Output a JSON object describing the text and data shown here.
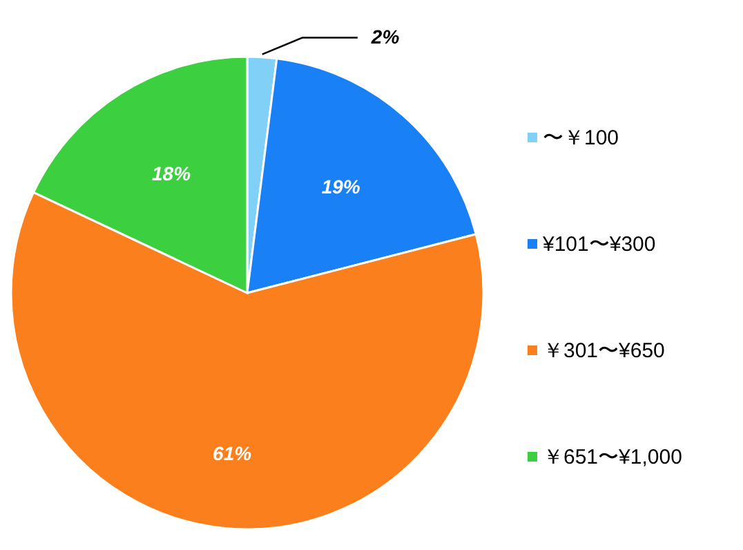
{
  "chart_data": {
    "type": "pie",
    "categories": [
      "〜￥100",
      "¥101〜¥300",
      "￥301〜¥650",
      "￥651〜¥1,000"
    ],
    "values": [
      2,
      19,
      61,
      18
    ],
    "colors": [
      "#80d0f8",
      "#1a80f5",
      "#fb7f1c",
      "#3cd040"
    ],
    "value_labels": [
      "2%",
      "19%",
      "61%",
      "18%"
    ],
    "legend": "right"
  }
}
